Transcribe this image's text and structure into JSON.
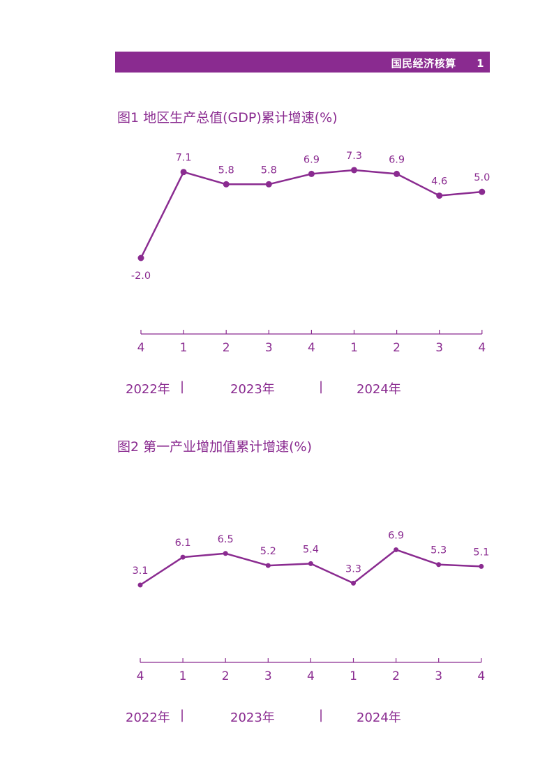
{
  "header": {
    "title": "国民经济核算",
    "page": "1"
  },
  "colors": {
    "accent": "#8a2b90"
  },
  "chart_data": [
    {
      "type": "line",
      "title": "图1  地区生产总值(GDP)累计增速(%)",
      "categories": [
        "4",
        "1",
        "2",
        "3",
        "4",
        "1",
        "2",
        "3",
        "4"
      ],
      "values": [
        -2.0,
        7.1,
        5.8,
        5.8,
        6.9,
        7.3,
        6.9,
        4.6,
        5.0
      ],
      "labels": [
        "-2.0",
        "7.1",
        "5.8",
        "5.8",
        "6.9",
        "7.3",
        "6.9",
        "4.6",
        "5.0"
      ],
      "years": [
        "2022年",
        "2023年",
        "2024年"
      ],
      "separator": "|",
      "grid": false
    },
    {
      "type": "line",
      "title": "图2  第一产业增加值累计增速(%)",
      "categories": [
        "4",
        "1",
        "2",
        "3",
        "4",
        "1",
        "2",
        "3",
        "4"
      ],
      "values": [
        3.1,
        6.1,
        6.5,
        5.2,
        5.4,
        3.3,
        6.9,
        5.3,
        5.1
      ],
      "labels": [
        "3.1",
        "6.1",
        "6.5",
        "5.2",
        "5.4",
        "3.3",
        "6.9",
        "5.3",
        "5.1"
      ],
      "years": [
        "2022年",
        "2023年",
        "2024年"
      ],
      "separator": "|",
      "grid": false
    }
  ]
}
